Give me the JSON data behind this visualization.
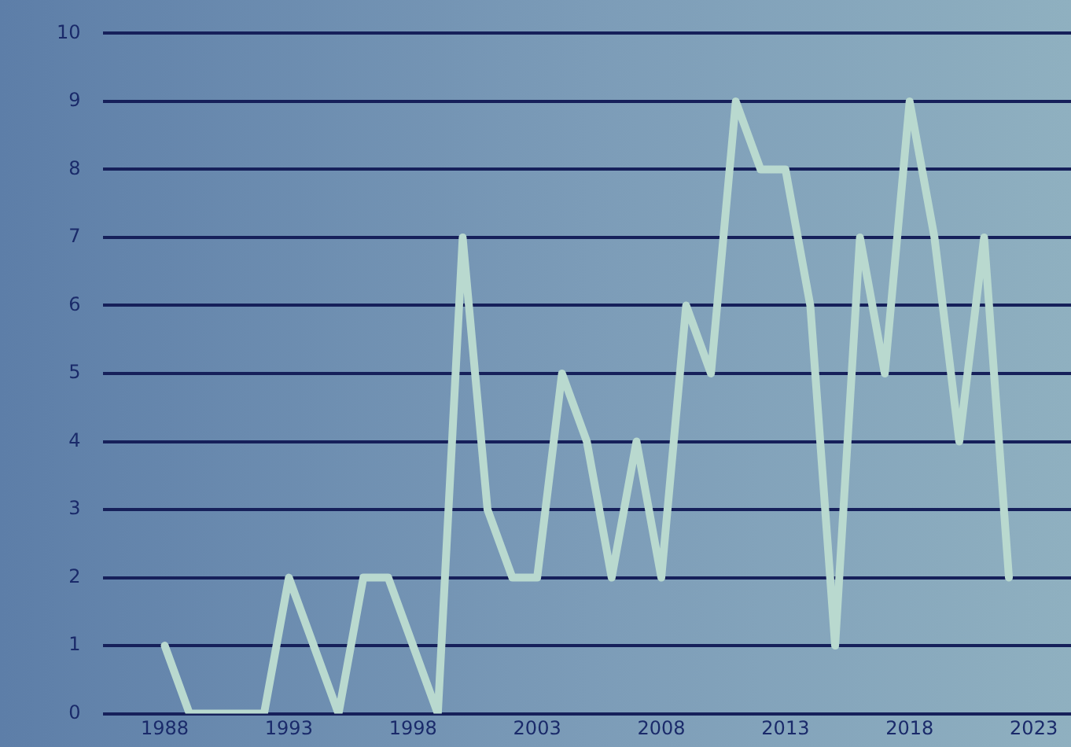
{
  "chart_data": {
    "type": "line",
    "x": [
      1988,
      1989,
      1990,
      1991,
      1992,
      1993,
      1994,
      1995,
      1996,
      1997,
      1998,
      1999,
      2000,
      2001,
      2002,
      2003,
      2004,
      2005,
      2006,
      2007,
      2008,
      2009,
      2010,
      2011,
      2012,
      2013,
      2014,
      2015,
      2016,
      2017,
      2018,
      2019,
      2020,
      2021,
      2022
    ],
    "series": [
      {
        "color": "#b9d9cf",
        "values": [
          1,
          0,
          0,
          0,
          0,
          2,
          1,
          0,
          2,
          2,
          1,
          0,
          7,
          3,
          2,
          2,
          5,
          4,
          2,
          4,
          2,
          6,
          5,
          9,
          8,
          8,
          6,
          1,
          7,
          5,
          9,
          7,
          4,
          7,
          2
        ]
      }
    ],
    "xlim": [
      1985.5,
      2024.5
    ],
    "xticks": [
      1988,
      1993,
      1998,
      2003,
      2008,
      2013,
      2018,
      2023
    ],
    "ylim": [
      0,
      10
    ],
    "yticks": [
      0,
      1,
      2,
      3,
      4,
      5,
      6,
      7,
      8,
      9,
      10
    ],
    "grid": "y",
    "legend": false,
    "marker": "none",
    "line_style": "solid"
  }
}
